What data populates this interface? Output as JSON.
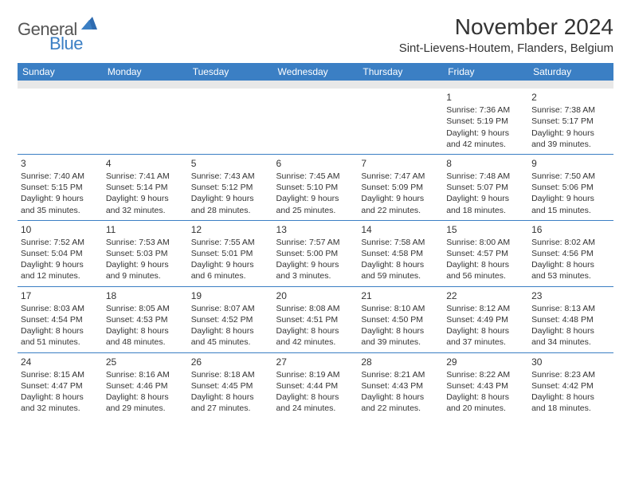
{
  "logo": {
    "text1": "General",
    "text2": "Blue",
    "color_general": "#555555",
    "color_blue": "#3b7fc4"
  },
  "title": "November 2024",
  "location": "Sint-Lievens-Houtem, Flanders, Belgium",
  "header_bg": "#3b7fc4",
  "header_fg": "#ffffff",
  "border_color": "#3b7fc4",
  "days_of_week": [
    "Sunday",
    "Monday",
    "Tuesday",
    "Wednesday",
    "Thursday",
    "Friday",
    "Saturday"
  ],
  "weeks": [
    [
      {
        "n": "",
        "sr": "",
        "ss": "",
        "dl": ""
      },
      {
        "n": "",
        "sr": "",
        "ss": "",
        "dl": ""
      },
      {
        "n": "",
        "sr": "",
        "ss": "",
        "dl": ""
      },
      {
        "n": "",
        "sr": "",
        "ss": "",
        "dl": ""
      },
      {
        "n": "",
        "sr": "",
        "ss": "",
        "dl": ""
      },
      {
        "n": "1",
        "sr": "Sunrise: 7:36 AM",
        "ss": "Sunset: 5:19 PM",
        "dl": "Daylight: 9 hours and 42 minutes."
      },
      {
        "n": "2",
        "sr": "Sunrise: 7:38 AM",
        "ss": "Sunset: 5:17 PM",
        "dl": "Daylight: 9 hours and 39 minutes."
      }
    ],
    [
      {
        "n": "3",
        "sr": "Sunrise: 7:40 AM",
        "ss": "Sunset: 5:15 PM",
        "dl": "Daylight: 9 hours and 35 minutes."
      },
      {
        "n": "4",
        "sr": "Sunrise: 7:41 AM",
        "ss": "Sunset: 5:14 PM",
        "dl": "Daylight: 9 hours and 32 minutes."
      },
      {
        "n": "5",
        "sr": "Sunrise: 7:43 AM",
        "ss": "Sunset: 5:12 PM",
        "dl": "Daylight: 9 hours and 28 minutes."
      },
      {
        "n": "6",
        "sr": "Sunrise: 7:45 AM",
        "ss": "Sunset: 5:10 PM",
        "dl": "Daylight: 9 hours and 25 minutes."
      },
      {
        "n": "7",
        "sr": "Sunrise: 7:47 AM",
        "ss": "Sunset: 5:09 PM",
        "dl": "Daylight: 9 hours and 22 minutes."
      },
      {
        "n": "8",
        "sr": "Sunrise: 7:48 AM",
        "ss": "Sunset: 5:07 PM",
        "dl": "Daylight: 9 hours and 18 minutes."
      },
      {
        "n": "9",
        "sr": "Sunrise: 7:50 AM",
        "ss": "Sunset: 5:06 PM",
        "dl": "Daylight: 9 hours and 15 minutes."
      }
    ],
    [
      {
        "n": "10",
        "sr": "Sunrise: 7:52 AM",
        "ss": "Sunset: 5:04 PM",
        "dl": "Daylight: 9 hours and 12 minutes."
      },
      {
        "n": "11",
        "sr": "Sunrise: 7:53 AM",
        "ss": "Sunset: 5:03 PM",
        "dl": "Daylight: 9 hours and 9 minutes."
      },
      {
        "n": "12",
        "sr": "Sunrise: 7:55 AM",
        "ss": "Sunset: 5:01 PM",
        "dl": "Daylight: 9 hours and 6 minutes."
      },
      {
        "n": "13",
        "sr": "Sunrise: 7:57 AM",
        "ss": "Sunset: 5:00 PM",
        "dl": "Daylight: 9 hours and 3 minutes."
      },
      {
        "n": "14",
        "sr": "Sunrise: 7:58 AM",
        "ss": "Sunset: 4:58 PM",
        "dl": "Daylight: 8 hours and 59 minutes."
      },
      {
        "n": "15",
        "sr": "Sunrise: 8:00 AM",
        "ss": "Sunset: 4:57 PM",
        "dl": "Daylight: 8 hours and 56 minutes."
      },
      {
        "n": "16",
        "sr": "Sunrise: 8:02 AM",
        "ss": "Sunset: 4:56 PM",
        "dl": "Daylight: 8 hours and 53 minutes."
      }
    ],
    [
      {
        "n": "17",
        "sr": "Sunrise: 8:03 AM",
        "ss": "Sunset: 4:54 PM",
        "dl": "Daylight: 8 hours and 51 minutes."
      },
      {
        "n": "18",
        "sr": "Sunrise: 8:05 AM",
        "ss": "Sunset: 4:53 PM",
        "dl": "Daylight: 8 hours and 48 minutes."
      },
      {
        "n": "19",
        "sr": "Sunrise: 8:07 AM",
        "ss": "Sunset: 4:52 PM",
        "dl": "Daylight: 8 hours and 45 minutes."
      },
      {
        "n": "20",
        "sr": "Sunrise: 8:08 AM",
        "ss": "Sunset: 4:51 PM",
        "dl": "Daylight: 8 hours and 42 minutes."
      },
      {
        "n": "21",
        "sr": "Sunrise: 8:10 AM",
        "ss": "Sunset: 4:50 PM",
        "dl": "Daylight: 8 hours and 39 minutes."
      },
      {
        "n": "22",
        "sr": "Sunrise: 8:12 AM",
        "ss": "Sunset: 4:49 PM",
        "dl": "Daylight: 8 hours and 37 minutes."
      },
      {
        "n": "23",
        "sr": "Sunrise: 8:13 AM",
        "ss": "Sunset: 4:48 PM",
        "dl": "Daylight: 8 hours and 34 minutes."
      }
    ],
    [
      {
        "n": "24",
        "sr": "Sunrise: 8:15 AM",
        "ss": "Sunset: 4:47 PM",
        "dl": "Daylight: 8 hours and 32 minutes."
      },
      {
        "n": "25",
        "sr": "Sunrise: 8:16 AM",
        "ss": "Sunset: 4:46 PM",
        "dl": "Daylight: 8 hours and 29 minutes."
      },
      {
        "n": "26",
        "sr": "Sunrise: 8:18 AM",
        "ss": "Sunset: 4:45 PM",
        "dl": "Daylight: 8 hours and 27 minutes."
      },
      {
        "n": "27",
        "sr": "Sunrise: 8:19 AM",
        "ss": "Sunset: 4:44 PM",
        "dl": "Daylight: 8 hours and 24 minutes."
      },
      {
        "n": "28",
        "sr": "Sunrise: 8:21 AM",
        "ss": "Sunset: 4:43 PM",
        "dl": "Daylight: 8 hours and 22 minutes."
      },
      {
        "n": "29",
        "sr": "Sunrise: 8:22 AM",
        "ss": "Sunset: 4:43 PM",
        "dl": "Daylight: 8 hours and 20 minutes."
      },
      {
        "n": "30",
        "sr": "Sunrise: 8:23 AM",
        "ss": "Sunset: 4:42 PM",
        "dl": "Daylight: 8 hours and 18 minutes."
      }
    ]
  ]
}
